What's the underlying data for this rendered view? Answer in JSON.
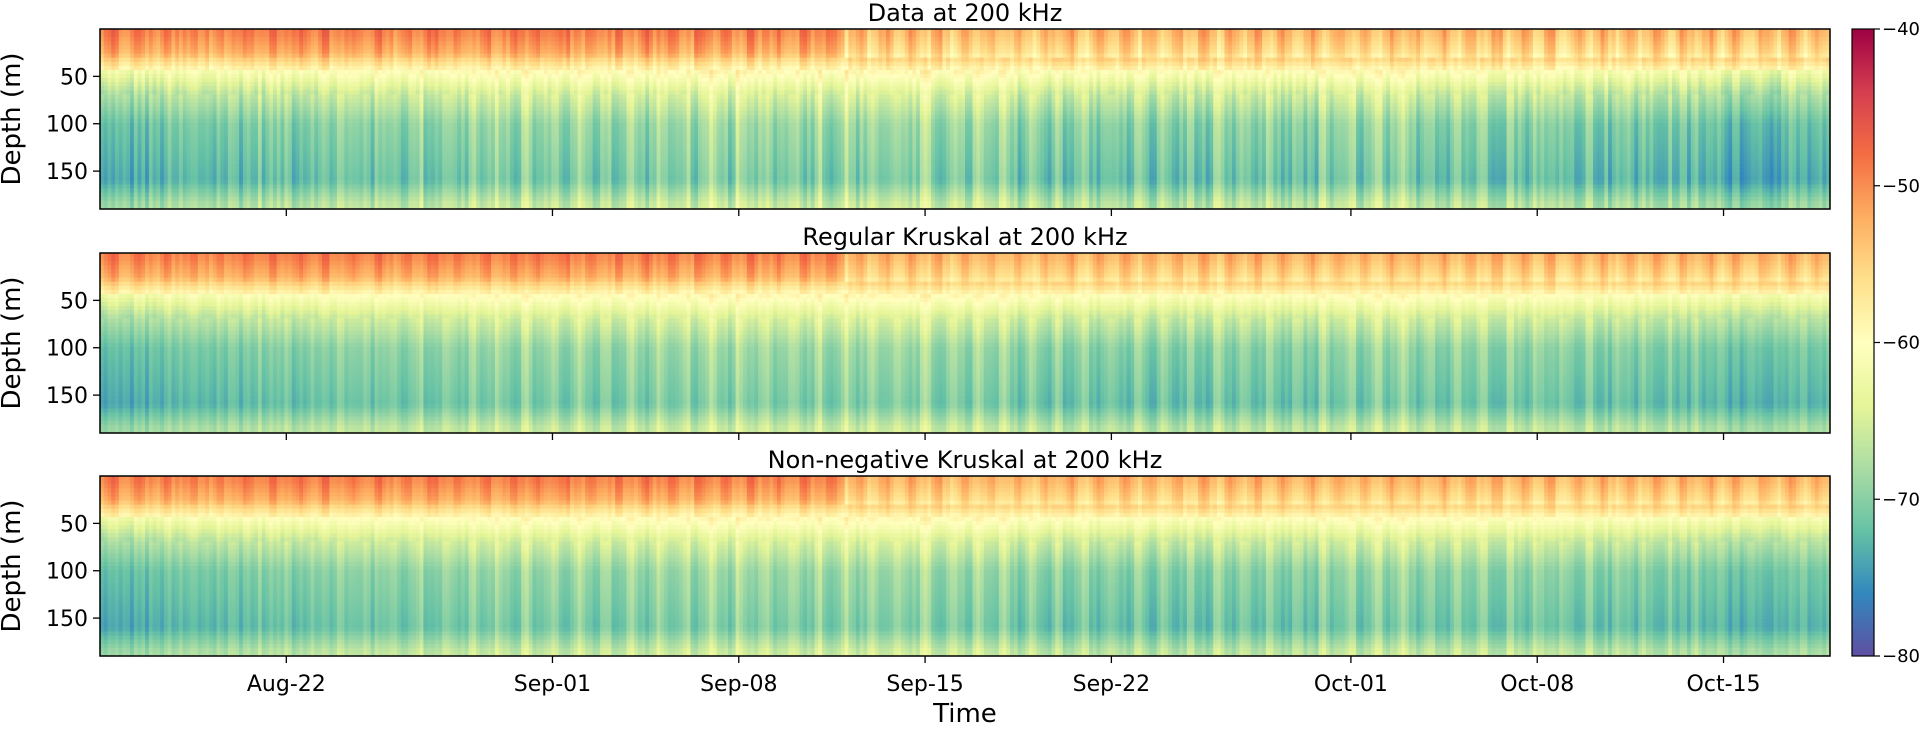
{
  "chart_data": {
    "type": "heatmap",
    "xlabel": "Time",
    "ylabel": "Depth (m)",
    "x_range": [
      "2015-08-15",
      "2015-10-19"
    ],
    "x_ticks": [
      "Aug-22",
      "Sep-01",
      "Sep-08",
      "Sep-15",
      "Sep-22",
      "Oct-01",
      "Oct-08",
      "Oct-15"
    ],
    "y_range": [
      0,
      190
    ],
    "y_inverted": true,
    "y_ticks": [
      "50",
      "100",
      "150"
    ],
    "colorbar": {
      "range": [
        -80,
        -40
      ],
      "ticks": [
        "−40",
        "−50",
        "−60",
        "−70",
        "−80"
      ],
      "colormap": "Spectral_r",
      "colors": [
        "#5e4fa2",
        "#3288bd",
        "#66c2a5",
        "#abdda4",
        "#e6f598",
        "#ffffbf",
        "#fee08b",
        "#fdae61",
        "#f46d43",
        "#d53e4f",
        "#9e0142"
      ]
    },
    "panels": [
      {
        "title": "Data at 200 kHz"
      },
      {
        "title": "Regular Kruskal at 200 kHz"
      },
      {
        "title": "Non-negative Kruskal at 200 kHz"
      }
    ],
    "approx_profile_db": {
      "depth_m": [
        5,
        25,
        45,
        70,
        100,
        130,
        160,
        185
      ],
      "value": [
        -50,
        -53,
        -60,
        -66,
        -70,
        -71,
        -72,
        -67
      ]
    }
  }
}
